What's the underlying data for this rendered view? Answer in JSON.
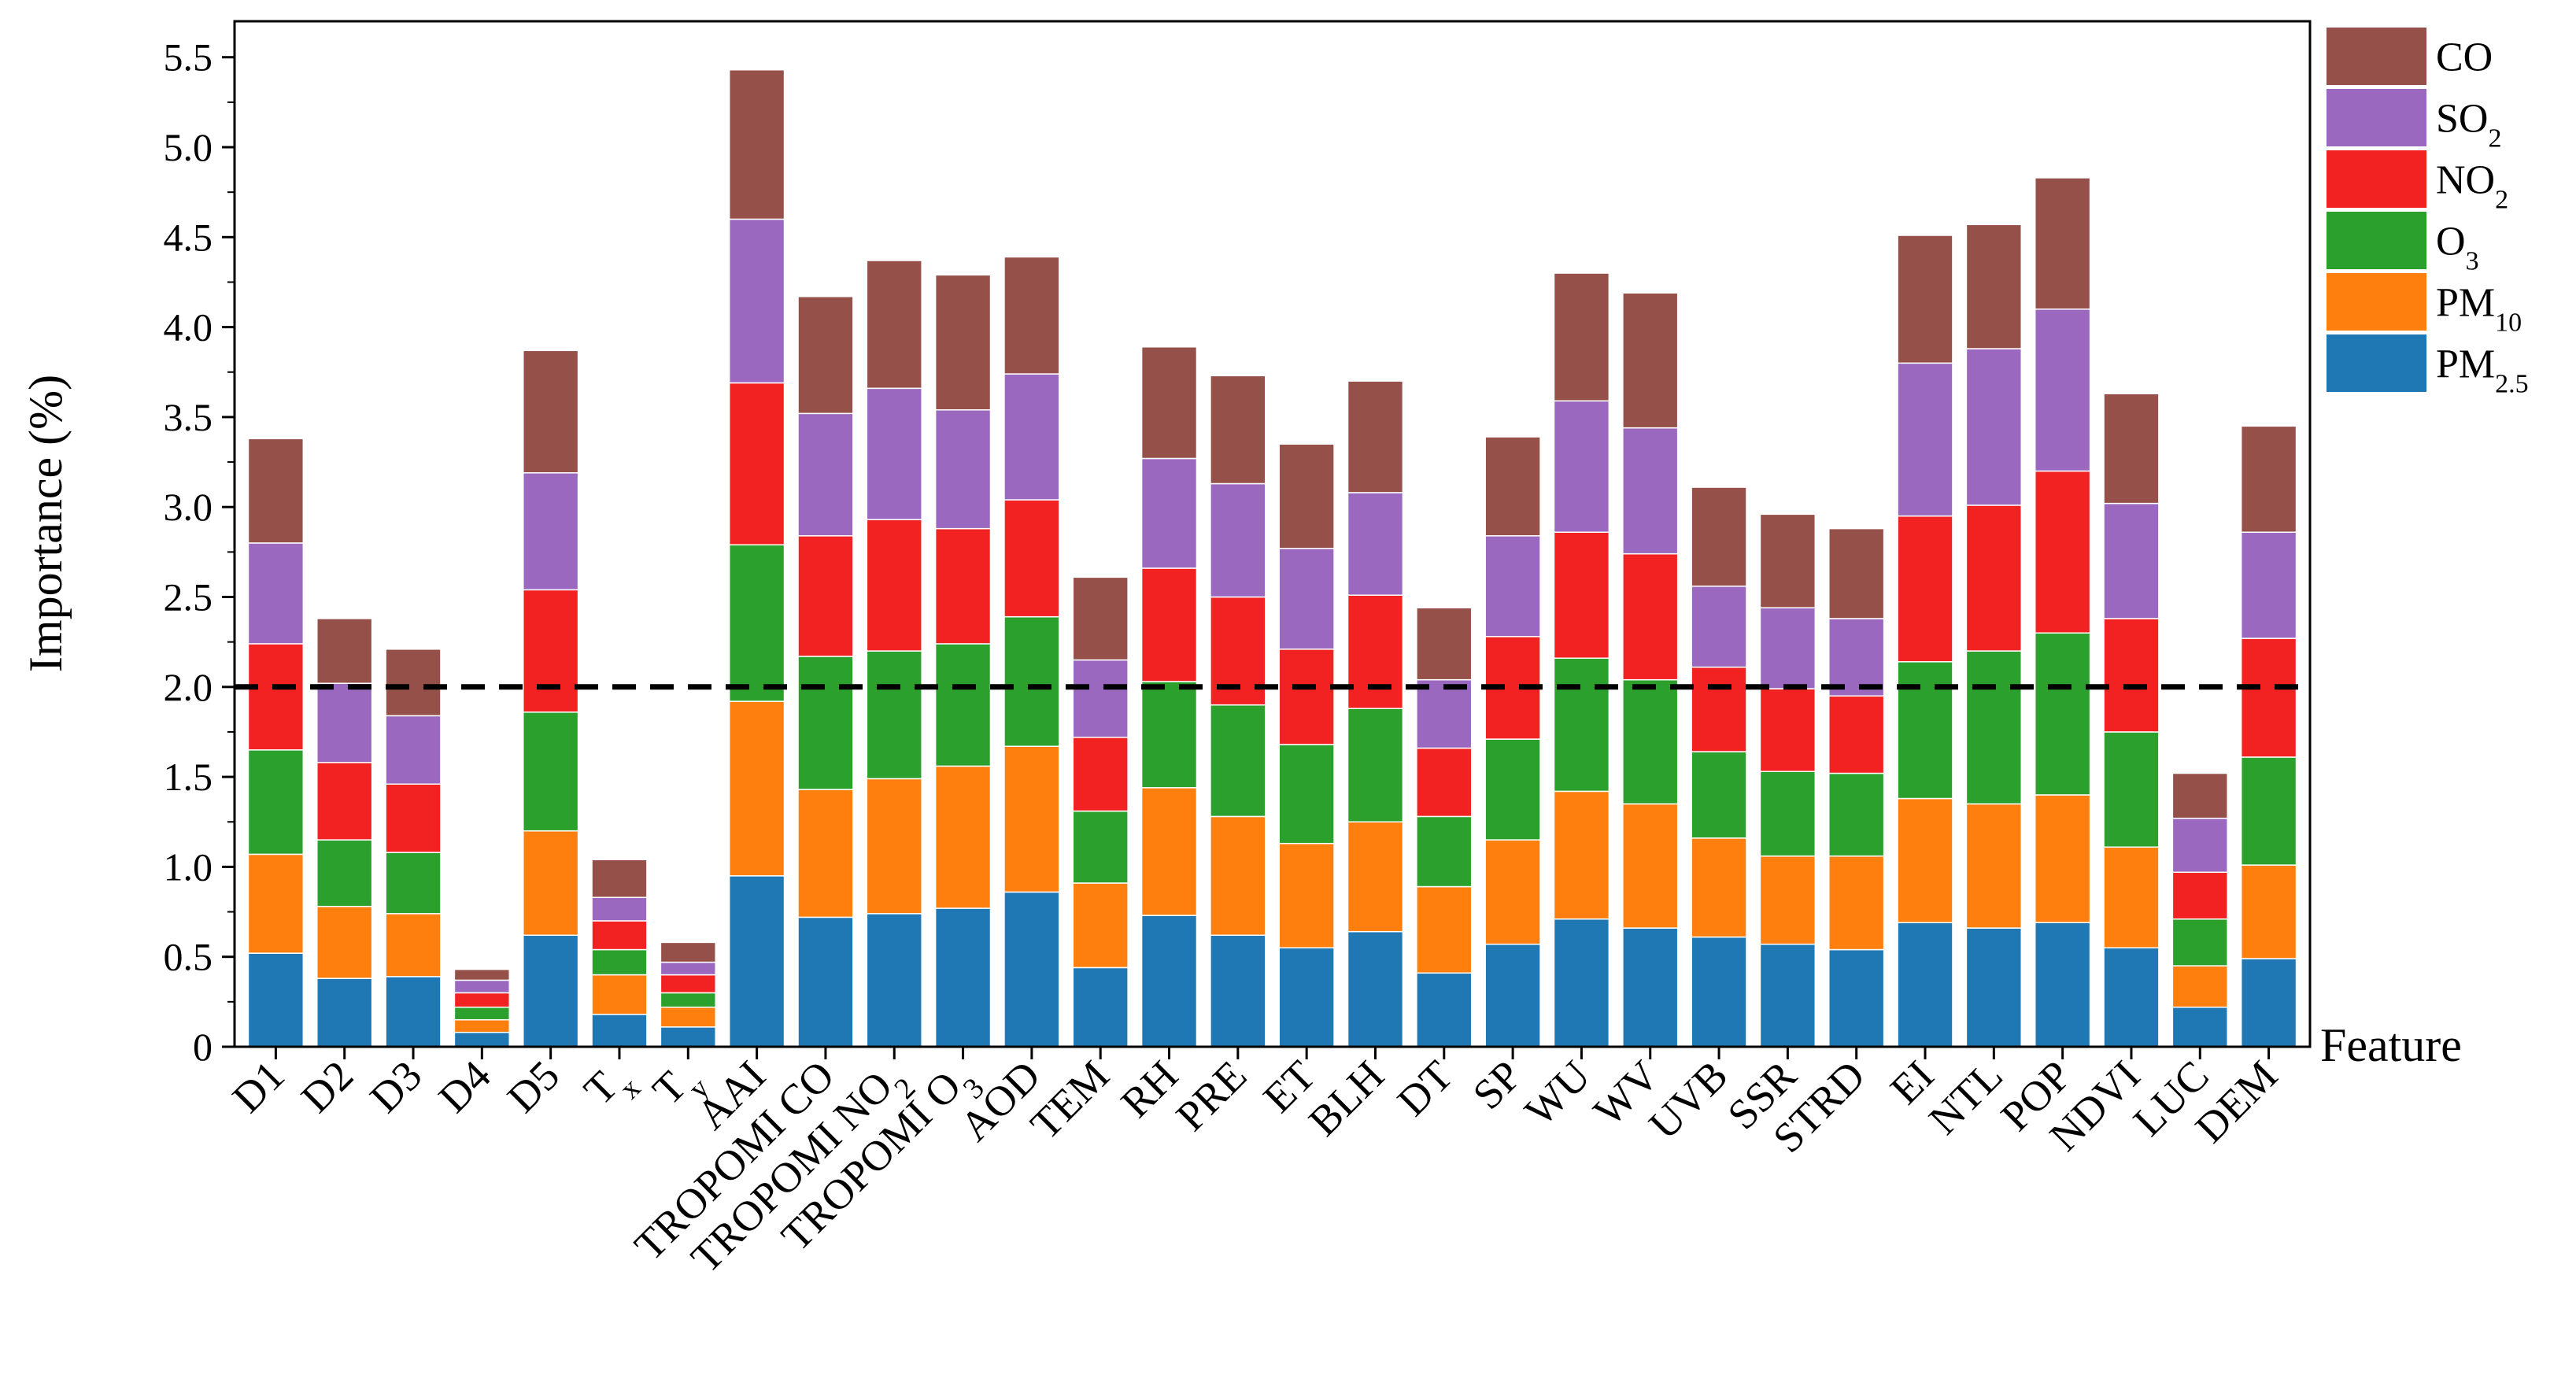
{
  "chart_data": {
    "type": "bar",
    "stacked": true,
    "title": "",
    "xlabel": "Feature",
    "ylabel": "Importance (%)",
    "ylim": [
      0,
      5.7
    ],
    "yticks": [
      0,
      0.5,
      1.0,
      1.5,
      2.0,
      2.5,
      3.0,
      3.5,
      4.0,
      4.5,
      5.0,
      5.5
    ],
    "ytick_labels": [
      "0",
      "0.5",
      "1.0",
      "1.5",
      "2.0",
      "2.5",
      "3.0",
      "3.5",
      "4.0",
      "4.5",
      "5.0",
      "5.5"
    ],
    "reference_line": {
      "y": 2.0,
      "style": "dashed",
      "color": "#000000"
    },
    "legend_position": "top-right",
    "categories": [
      {
        "main": "D1",
        "sub": ""
      },
      {
        "main": "D2",
        "sub": ""
      },
      {
        "main": "D3",
        "sub": ""
      },
      {
        "main": "D4",
        "sub": ""
      },
      {
        "main": "D5",
        "sub": ""
      },
      {
        "main": "T",
        "sub": "x"
      },
      {
        "main": "T",
        "sub": "y"
      },
      {
        "main": "AAI",
        "sub": ""
      },
      {
        "main": "TROPOMI CO",
        "sub": ""
      },
      {
        "main": "TROPOMI NO",
        "sub": "2"
      },
      {
        "main": "TROPOMI O",
        "sub": "3"
      },
      {
        "main": "AOD",
        "sub": ""
      },
      {
        "main": "TEM",
        "sub": ""
      },
      {
        "main": "RH",
        "sub": ""
      },
      {
        "main": "PRE",
        "sub": ""
      },
      {
        "main": "ET",
        "sub": ""
      },
      {
        "main": "BLH",
        "sub": ""
      },
      {
        "main": "DT",
        "sub": ""
      },
      {
        "main": "SP",
        "sub": ""
      },
      {
        "main": "WU",
        "sub": ""
      },
      {
        "main": "WV",
        "sub": ""
      },
      {
        "main": "UVB",
        "sub": ""
      },
      {
        "main": "SSR",
        "sub": ""
      },
      {
        "main": "STRD",
        "sub": ""
      },
      {
        "main": "EI",
        "sub": ""
      },
      {
        "main": "NTL",
        "sub": ""
      },
      {
        "main": "POP",
        "sub": ""
      },
      {
        "main": "NDVI",
        "sub": ""
      },
      {
        "main": "LUC",
        "sub": ""
      },
      {
        "main": "DEM",
        "sub": ""
      }
    ],
    "series": [
      {
        "name": "PM",
        "sub": "2.5",
        "color": "#1f77b4",
        "values": [
          0.52,
          0.38,
          0.39,
          0.08,
          0.62,
          0.18,
          0.11,
          0.95,
          0.72,
          0.74,
          0.77,
          0.86,
          0.44,
          0.73,
          0.62,
          0.55,
          0.64,
          0.41,
          0.57,
          0.71,
          0.66,
          0.61,
          0.57,
          0.54,
          0.69,
          0.66,
          0.69,
          0.55,
          0.22,
          0.49
        ]
      },
      {
        "name": "PM",
        "sub": "10",
        "color": "#ff7f0e",
        "values": [
          0.55,
          0.4,
          0.35,
          0.07,
          0.58,
          0.22,
          0.11,
          0.97,
          0.71,
          0.75,
          0.79,
          0.81,
          0.47,
          0.71,
          0.66,
          0.58,
          0.61,
          0.48,
          0.58,
          0.71,
          0.69,
          0.55,
          0.49,
          0.52,
          0.69,
          0.69,
          0.71,
          0.56,
          0.23,
          0.52
        ]
      },
      {
        "name": "O",
        "sub": "3",
        "color": "#2ca02c",
        "values": [
          0.58,
          0.37,
          0.34,
          0.07,
          0.66,
          0.14,
          0.08,
          0.87,
          0.74,
          0.71,
          0.68,
          0.72,
          0.4,
          0.59,
          0.62,
          0.55,
          0.63,
          0.39,
          0.56,
          0.74,
          0.69,
          0.48,
          0.47,
          0.46,
          0.76,
          0.85,
          0.9,
          0.64,
          0.26,
          0.6
        ]
      },
      {
        "name": "NO",
        "sub": "2",
        "color": "#f22222",
        "values": [
          0.59,
          0.43,
          0.38,
          0.08,
          0.68,
          0.16,
          0.1,
          0.9,
          0.67,
          0.73,
          0.64,
          0.65,
          0.41,
          0.63,
          0.6,
          0.53,
          0.63,
          0.38,
          0.57,
          0.7,
          0.7,
          0.47,
          0.46,
          0.43,
          0.81,
          0.81,
          0.9,
          0.63,
          0.26,
          0.66
        ]
      },
      {
        "name": "SO",
        "sub": "2",
        "color": "#9b68c0",
        "values": [
          0.56,
          0.44,
          0.38,
          0.07,
          0.65,
          0.13,
          0.07,
          0.91,
          0.68,
          0.73,
          0.66,
          0.7,
          0.43,
          0.61,
          0.63,
          0.56,
          0.57,
          0.38,
          0.56,
          0.73,
          0.7,
          0.45,
          0.45,
          0.43,
          0.85,
          0.87,
          0.9,
          0.64,
          0.3,
          0.59
        ]
      },
      {
        "name": "CO",
        "sub": "",
        "color": "#955149",
        "values": [
          0.58,
          0.36,
          0.37,
          0.06,
          0.68,
          0.21,
          0.11,
          0.83,
          0.65,
          0.71,
          0.75,
          0.65,
          0.46,
          0.62,
          0.6,
          0.58,
          0.62,
          0.4,
          0.55,
          0.71,
          0.75,
          0.55,
          0.52,
          0.5,
          0.71,
          0.69,
          0.73,
          0.61,
          0.25,
          0.59
        ]
      }
    ]
  }
}
